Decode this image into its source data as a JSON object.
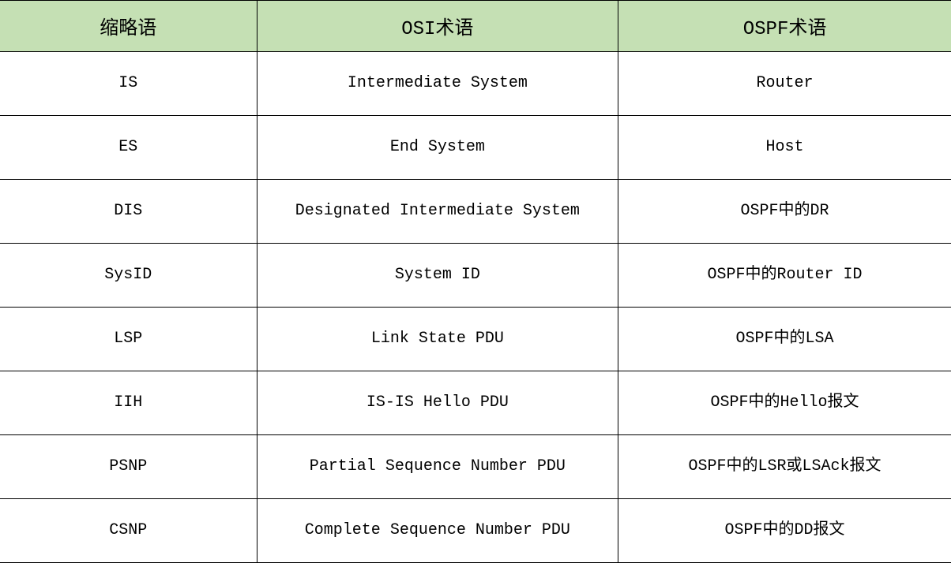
{
  "table": {
    "type": "table",
    "header_bg_color": "#c5e0b4",
    "border_color": "#000000",
    "text_color": "#000000",
    "header_fontsize": 24,
    "cell_fontsize": 20,
    "columns": [
      {
        "label": "缩略语",
        "width_pct": 27
      },
      {
        "label": "OSI术语",
        "width_pct": 38
      },
      {
        "label": "OSPF术语",
        "width_pct": 35
      }
    ],
    "rows": [
      {
        "c0": "IS",
        "c1": "Intermediate System",
        "c2": "Router"
      },
      {
        "c0": "ES",
        "c1": "End System",
        "c2": "Host"
      },
      {
        "c0": "DIS",
        "c1": "Designated Intermediate System",
        "c2": "OSPF中的DR"
      },
      {
        "c0": "SysID",
        "c1": "System ID",
        "c2": "OSPF中的Router ID"
      },
      {
        "c0": "LSP",
        "c1": "Link State PDU",
        "c2": "OSPF中的LSA"
      },
      {
        "c0": "IIH",
        "c1": "IS-IS Hello PDU",
        "c2": "OSPF中的Hello报文"
      },
      {
        "c0": "PSNP",
        "c1": "Partial Sequence Number PDU",
        "c2": "OSPF中的LSR或LSAck报文"
      },
      {
        "c0": "CSNP",
        "c1": "Complete Sequence Number PDU",
        "c2": "OSPF中的DD报文"
      }
    ]
  }
}
